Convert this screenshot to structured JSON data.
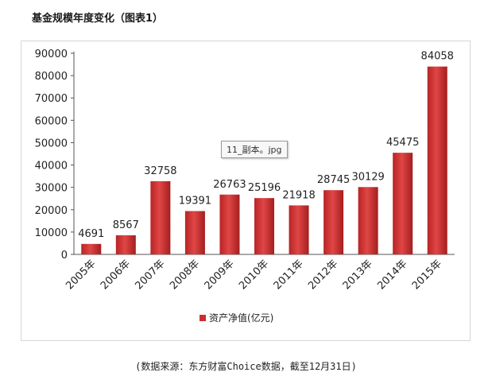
{
  "heading": "基金规模年度变化（图表1）",
  "tooltip": "11_副本。jpg",
  "source": "(数据来源：东方财富Choice数据，截至12月31日)",
  "colors": {
    "bar": "#cc2f2f",
    "bar_dark": "#9e1c1c",
    "axis": "#555555"
  },
  "chart_data": {
    "type": "bar",
    "categories": [
      "2005年",
      "2006年",
      "2007年",
      "2008年",
      "2009年",
      "2010年",
      "2011年",
      "2012年",
      "2013年",
      "2014年",
      "2015年"
    ],
    "series": [
      {
        "name": "资产净值(亿元)",
        "values": [
          4691,
          8567,
          32758,
          19391,
          26763,
          25196,
          21918,
          28745,
          30129,
          45475,
          84058
        ]
      }
    ],
    "ylim": [
      0,
      90000
    ],
    "yticks": [
      0,
      10000,
      20000,
      30000,
      40000,
      50000,
      60000,
      70000,
      80000,
      90000
    ],
    "legend_position": "bottom",
    "grid": false
  }
}
